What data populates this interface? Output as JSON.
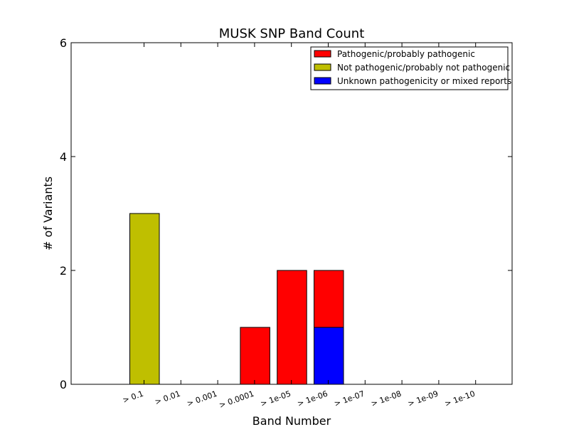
{
  "chart_data": {
    "type": "bar",
    "stacked": true,
    "title": "MUSK SNP Band Count",
    "xlabel": "Band Number",
    "ylabel": "# of Variants",
    "ylim": [
      0,
      6
    ],
    "yticks": [
      0,
      2,
      4,
      6
    ],
    "grid": false,
    "legend_position": "top-right",
    "categories": [
      "> 0.1",
      "> 0.01",
      "> 0.001",
      "> 0.0001",
      "> 1e-05",
      "> 1e-06",
      "> 1e-07",
      "> 1e-08",
      "> 1e-09",
      "> 1e-10"
    ],
    "series": [
      {
        "name": "Unknown pathogenicity or mixed reports",
        "color": "#0000ff",
        "values": [
          0,
          0,
          0,
          0,
          0,
          1,
          0,
          0,
          0,
          0
        ]
      },
      {
        "name": "Not pathogenic/probably not pathogenic",
        "color": "#bfbf00",
        "values": [
          3,
          0,
          0,
          0,
          0,
          0,
          0,
          0,
          0,
          0
        ]
      },
      {
        "name": "Pathogenic/probably pathogenic",
        "color": "#ff0000",
        "values": [
          0,
          0,
          0,
          1,
          2,
          1,
          0,
          0,
          0,
          0
        ]
      }
    ],
    "legend_order": [
      2,
      1,
      0
    ]
  }
}
